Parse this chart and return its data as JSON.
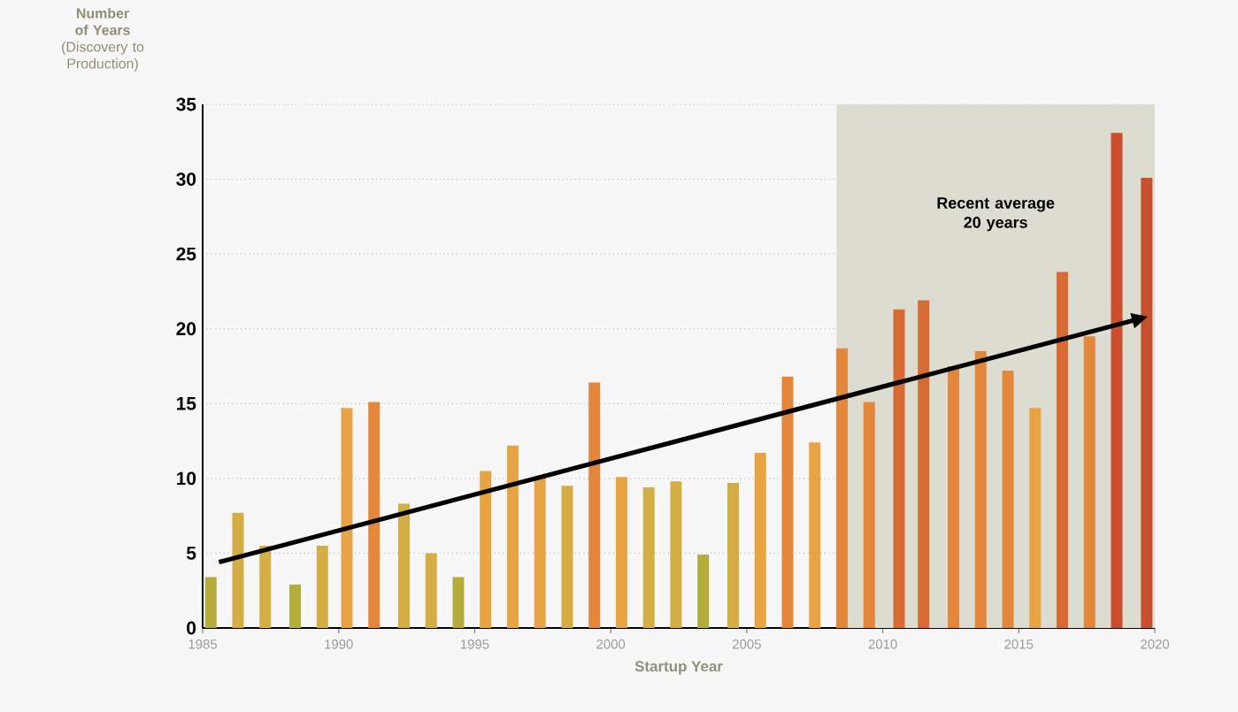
{
  "chart_data": {
    "type": "bar",
    "ylabel": "**Number of Years** (Discovery to Production)",
    "xlabel": "Startup Year",
    "x": [
      1985.3,
      1986.3,
      1987.3,
      1988.4,
      1989.4,
      1990.3,
      1991.3,
      1992.4,
      1993.4,
      1994.4,
      1995.4,
      1996.4,
      1997.4,
      1998.4,
      1999.4,
      2000.4,
      2001.4,
      2002.4,
      2003.4,
      2004.5,
      2005.5,
      2006.5,
      2007.5,
      2008.5,
      2009.5,
      2010.6,
      2011.5,
      2012.6,
      2013.6,
      2014.6,
      2015.6,
      2016.6,
      2017.6,
      2018.6,
      2019.7
    ],
    "series": [
      {
        "values": [
          3.4,
          7.7,
          5.5,
          2.9,
          5.5,
          14.7,
          15.1,
          8.3,
          5.0,
          3.4,
          10.5,
          12.2,
          10.0,
          9.5,
          16.4,
          10.1,
          9.4,
          9.8,
          4.9,
          9.7,
          11.7,
          16.8,
          12.4,
          18.7,
          15.1,
          21.3,
          21.9,
          17.5,
          18.5,
          17.2,
          14.7,
          23.8,
          19.5,
          33.1,
          30.1
        ],
        "colors": [
          "#b4ad3c",
          "#d4ae44",
          "#d4ae44",
          "#b4ad3c",
          "#d4ae44",
          "#e8a444",
          "#e4873a",
          "#d4ae44",
          "#d4ae44",
          "#b4ad3c",
          "#e8a444",
          "#e8a444",
          "#e8a444",
          "#d4ae44",
          "#e4873a",
          "#e8a444",
          "#d4ae44",
          "#d4ae44",
          "#b4ad3c",
          "#d4ae44",
          "#e8a444",
          "#e4873a",
          "#e8a444",
          "#e4873a",
          "#e4873a",
          "#d86a34",
          "#d86a34",
          "#e4873a",
          "#e4873a",
          "#e4873a",
          "#e8a444",
          "#d86a34",
          "#e4873a",
          "#c9502e",
          "#c9502e"
        ]
      },
      {
        "type": "line",
        "x": [
          1985.6,
          2019.3
        ],
        "values": [
          4.4,
          20.6
        ],
        "color": "#000000"
      }
    ],
    "bands": [
      {
        "axis": "x",
        "from": 2008.3,
        "to": 2020,
        "label": "Recent average 20 years",
        "color": "#dcdcd0"
      }
    ],
    "xlim": [
      1985,
      2020
    ],
    "xticks": [
      1985,
      1990,
      1995,
      2000,
      2005,
      2010,
      2015,
      2020
    ],
    "ylim": [
      0,
      35
    ],
    "yticks": [
      0,
      5,
      10,
      15,
      20,
      25,
      30,
      35
    ],
    "grid": "y"
  }
}
